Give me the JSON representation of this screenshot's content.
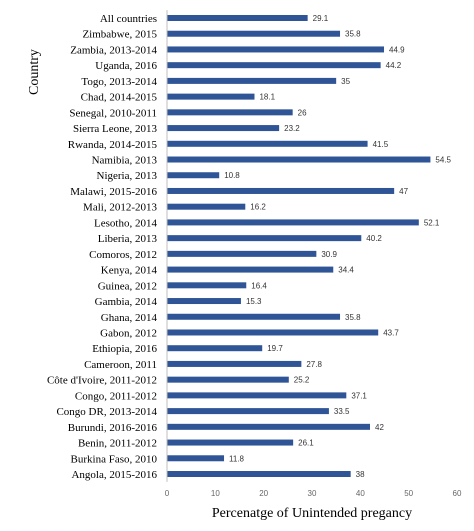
{
  "chart_data": {
    "type": "bar",
    "orientation": "horizontal",
    "xlabel": "Percenatge of Unintended pregancy",
    "ylabel": "Country",
    "xlim": [
      0,
      60
    ],
    "xticks": [
      0,
      10,
      20,
      30,
      40,
      50,
      60
    ],
    "grid": false,
    "legend": "none",
    "bar_color": "#2f5597",
    "categories": [
      "All countries",
      "Zimbabwe, 2015",
      "Zambia, 2013-2014",
      "Uganda, 2016",
      "Togo, 2013-2014",
      "Chad, 2014-2015",
      "Senegal, 2010-2011",
      "Sierra Leone, 2013",
      "Rwanda, 2014-2015",
      "Namibia, 2013",
      "Nigeria, 2013",
      "Malawi, 2015-2016",
      "Mali, 2012-2013",
      "Lesotho, 2014",
      "Liberia, 2013",
      "Comoros, 2012",
      "Kenya, 2014",
      "Guinea, 2012",
      "Gambia, 2014",
      "Ghana, 2014",
      "Gabon, 2012",
      "Ethiopia, 2016",
      "Cameroon, 2011",
      "Côte d'Ivoire, 2011-2012",
      "Congo, 2011-2012",
      "Congo DR, 2013-2014",
      "Burundi, 2016-2016",
      "Benin, 2011-2012",
      "Burkina Faso, 2010",
      "Angola, 2015-2016"
    ],
    "values": [
      29.1,
      35.8,
      44.9,
      44.2,
      35,
      18.1,
      26,
      23.2,
      41.5,
      54.5,
      10.8,
      47,
      16.2,
      52.1,
      40.2,
      30.9,
      34.4,
      16.4,
      15.3,
      35.8,
      43.7,
      19.7,
      27.8,
      25.2,
      37.1,
      33.5,
      42,
      26.1,
      11.8,
      38
    ],
    "value_labels": [
      "29.1",
      "35.8",
      "44.9",
      "44.2",
      "35",
      "18.1",
      "26",
      "23.2",
      "41.5",
      "54.5",
      "10.8",
      "47",
      "16.2",
      "52.1",
      "40.2",
      "30.9",
      "34.4",
      "16.4",
      "15.3",
      "35.8",
      "43.7",
      "19.7",
      "27.8",
      "25.2",
      "37.1",
      "33.5",
      "42",
      "26.1",
      "11.8",
      "38"
    ]
  }
}
